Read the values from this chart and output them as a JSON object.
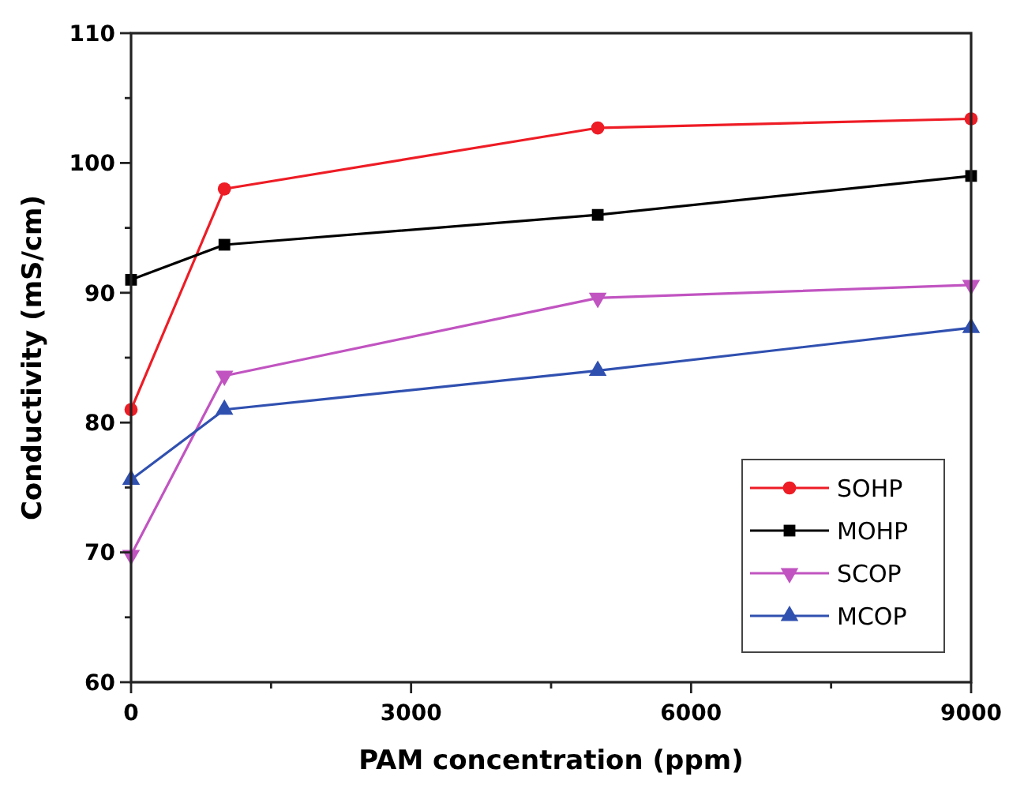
{
  "chart_data": {
    "type": "line",
    "xlabel": "PAM concentration (ppm)",
    "ylabel": "Conductivity (mS/cm)",
    "x": [
      0,
      1000,
      5000,
      9000
    ],
    "xlim": [
      0,
      9000
    ],
    "xticks": [
      0,
      {
        "value": 1500,
        "label": null
      },
      3000,
      {
        "value": 4500,
        "label": null
      },
      6000,
      {
        "value": 7500,
        "label": null
      },
      9000
    ],
    "ylim": [
      60,
      110
    ],
    "yticks": [
      60,
      {
        "value": 65,
        "label": null
      },
      70,
      {
        "value": 75,
        "label": null
      },
      80,
      {
        "value": 85,
        "label": null
      },
      90,
      {
        "value": 95,
        "label": null
      },
      100,
      {
        "value": 105,
        "label": null
      },
      110
    ],
    "grid": false,
    "legend": "bottom right",
    "line_style": "solid",
    "series": [
      {
        "name": "SOHP",
        "color": "#ee1c25",
        "marker": "circle",
        "values": [
          81.0,
          98.0,
          102.7,
          103.4
        ]
      },
      {
        "name": "MOHP",
        "color": "#000000",
        "marker": "square",
        "values": [
          91.0,
          93.7,
          96.0,
          99.0
        ]
      },
      {
        "name": "SCOP",
        "color": "#c154c1",
        "marker": "triangle-down",
        "values": [
          69.8,
          83.6,
          89.6,
          90.6
        ]
      },
      {
        "name": "MCOP",
        "color": "#3050b0",
        "marker": "triangle",
        "values": [
          75.6,
          81.0,
          84.0,
          87.3
        ]
      }
    ]
  }
}
